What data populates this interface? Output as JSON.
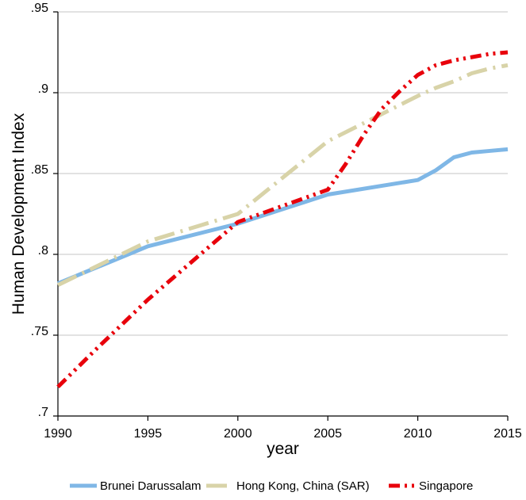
{
  "chart_data": {
    "type": "line",
    "title": "",
    "xlabel": "year",
    "ylabel": "Human Development Index",
    "xlim": [
      1990,
      2015
    ],
    "ylim": [
      0.7,
      0.95
    ],
    "x_ticks": [
      {
        "value": 1990,
        "label": "1990"
      },
      {
        "value": 1995,
        "label": "1995"
      },
      {
        "value": 2000,
        "label": "2000"
      },
      {
        "value": 2005,
        "label": "2005"
      },
      {
        "value": 2010,
        "label": "2010"
      },
      {
        "value": 2015,
        "label": "2015"
      }
    ],
    "y_ticks": [
      {
        "value": 0.7,
        "label": ".7"
      },
      {
        "value": 0.75,
        "label": ".75"
      },
      {
        "value": 0.8,
        "label": ".8"
      },
      {
        "value": 0.85,
        "label": ".85"
      },
      {
        "value": 0.9,
        "label": ".9"
      },
      {
        "value": 0.95,
        "label": ".95"
      }
    ],
    "grid": "horizontal",
    "legend_position": "bottom",
    "series": [
      {
        "name": "Brunei Darussalam",
        "color": "#7fb7e6",
        "dash": "solid",
        "x": [
          1990,
          1995,
          2000,
          2005,
          2010,
          2011,
          2012,
          2013,
          2014,
          2015
        ],
        "y": [
          0.782,
          0.805,
          0.819,
          0.837,
          0.846,
          0.852,
          0.86,
          0.863,
          0.864,
          0.865
        ]
      },
      {
        "name": "Hong Kong, China (SAR)",
        "color": "#d8d3a8",
        "dash": "longdash-dot",
        "x": [
          1990,
          1995,
          2000,
          2005,
          2010,
          2011,
          2012,
          2013,
          2014,
          2015
        ],
        "y": [
          0.781,
          0.808,
          0.825,
          0.87,
          0.898,
          0.903,
          0.907,
          0.912,
          0.915,
          0.917
        ]
      },
      {
        "name": "Singapore",
        "color": "#e8000b",
        "dash": "dash-dot-dot",
        "x": [
          1990,
          1992,
          1995,
          2000,
          2005,
          2006,
          2007,
          2008,
          2009,
          2010,
          2011,
          2012,
          2013,
          2014,
          2015
        ],
        "y": [
          0.718,
          0.74,
          0.772,
          0.82,
          0.84,
          0.856,
          0.874,
          0.89,
          0.901,
          0.911,
          0.917,
          0.92,
          0.922,
          0.924,
          0.925
        ]
      }
    ]
  }
}
